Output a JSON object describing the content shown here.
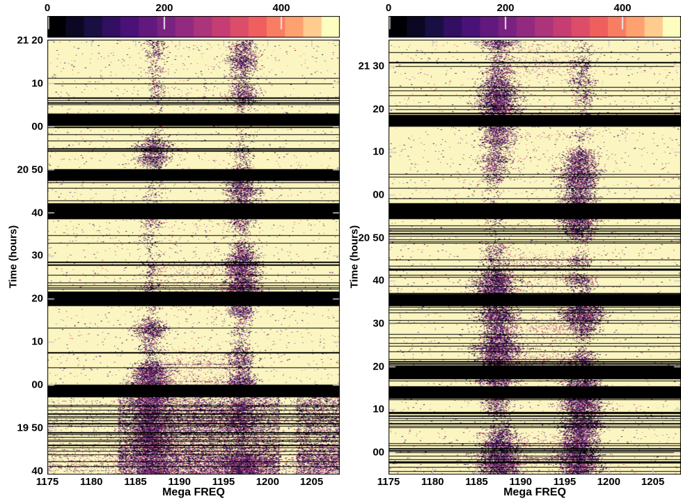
{
  "chart_data": {
    "type": "heatmap",
    "title": "",
    "xlabel": "Mega FREQ",
    "ylabel": "Time (hours)",
    "x_range": [
      1175,
      1208.2
    ],
    "x_ticks": [
      {
        "value": 1175,
        "label": "1175"
      },
      {
        "value": 1180,
        "label": "1180"
      },
      {
        "value": 1185,
        "label": "1185"
      },
      {
        "value": 1190,
        "label": "1190"
      },
      {
        "value": 1195,
        "label": "1195"
      },
      {
        "value": 1200,
        "label": "1200"
      },
      {
        "value": 1205,
        "label": "1205"
      }
    ],
    "colorbar": {
      "colormap": "magma",
      "range": [
        0,
        500
      ],
      "ticks": [
        {
          "value": 0,
          "label": "0"
        },
        {
          "value": 200,
          "label": "200"
        },
        {
          "value": 400,
          "label": "400"
        }
      ]
    },
    "colors": {
      "background_value": "#fbf6c1",
      "data_gap": "#000000",
      "rfi_band_core": "#2a0a4a",
      "axis_tick": "#cccccc"
    },
    "panels": [
      {
        "id": "left",
        "time_top_hours": 21.336,
        "time_bottom_hours": 19.653,
        "y_ticks": [
          {
            "hours": 21.3333,
            "label": "21 20"
          },
          {
            "hours": 21.1667,
            "label": "10"
          },
          {
            "hours": 21.0,
            "label": "00"
          },
          {
            "hours": 20.8333,
            "label": "20 50"
          },
          {
            "hours": 20.6667,
            "label": "40"
          },
          {
            "hours": 20.5,
            "label": "30"
          },
          {
            "hours": 20.3333,
            "label": "20"
          },
          {
            "hours": 20.1667,
            "label": "10"
          },
          {
            "hours": 20.0,
            "label": "00"
          },
          {
            "hours": 19.8333,
            "label": "19 50"
          },
          {
            "hours": 19.6667,
            "label": "40"
          }
        ],
        "rfi_bands": [
          {
            "center_mhz": 1187.0,
            "width_mhz": 2.6
          },
          {
            "center_mhz": 1197.3,
            "width_mhz": 2.6
          }
        ],
        "data_gaps_hours": [
          [
            21.002,
            21.05
          ],
          [
            20.789,
            20.835
          ],
          [
            20.641,
            20.703
          ],
          [
            20.305,
            20.359
          ],
          [
            19.952,
            20.001
          ]
        ],
        "broadband_rfi": {
          "from_hours": 19.653,
          "to_hours": 19.95,
          "from_mhz": 1183.0,
          "quiet_strip_mhz": [
            1201.3,
            1203.2
          ]
        }
      },
      {
        "id": "right",
        "time_top_hours": 21.603,
        "time_bottom_hours": 19.914,
        "y_ticks": [
          {
            "hours": 21.5,
            "label": "21 30"
          },
          {
            "hours": 21.3333,
            "label": "20"
          },
          {
            "hours": 21.1667,
            "label": "10"
          },
          {
            "hours": 21.0,
            "label": "00"
          },
          {
            "hours": 20.8333,
            "label": "20 50"
          },
          {
            "hours": 20.6667,
            "label": "40"
          },
          {
            "hours": 20.5,
            "label": "30"
          },
          {
            "hours": 20.3333,
            "label": "20"
          },
          {
            "hours": 20.1667,
            "label": "10"
          },
          {
            "hours": 20.0,
            "label": "00"
          }
        ],
        "rfi_bands": [
          {
            "center_mhz": 1187.3,
            "width_mhz": 2.8
          },
          {
            "center_mhz": 1196.9,
            "width_mhz": 2.8
          }
        ],
        "data_gaps_hours": [
          [
            21.265,
            21.311
          ],
          [
            20.906,
            20.968
          ],
          [
            20.568,
            20.616
          ],
          [
            20.284,
            20.338
          ],
          [
            20.208,
            20.257
          ]
        ],
        "broadband_rfi": null
      }
    ]
  }
}
